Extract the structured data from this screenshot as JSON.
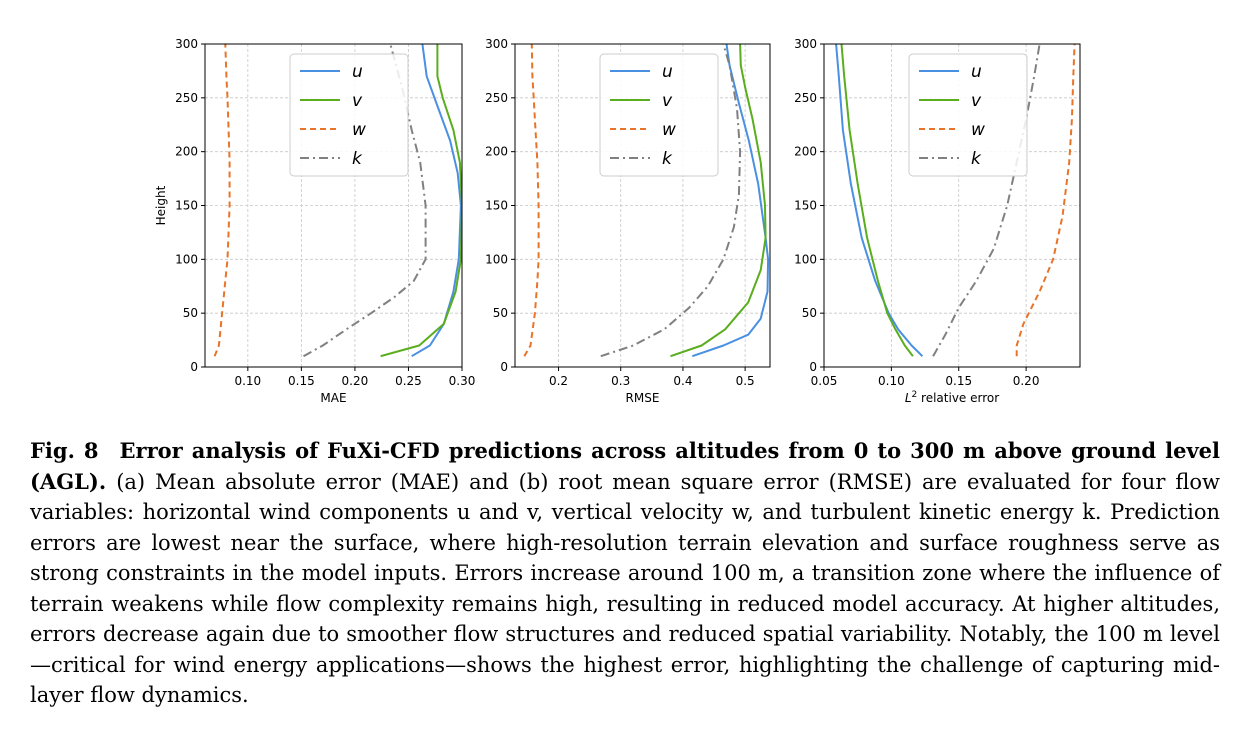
{
  "chart_data": [
    {
      "type": "line",
      "panel": "a",
      "title": "",
      "xlabel": "MAE",
      "ylabel": "Height",
      "xlim": [
        0.06,
        0.3
      ],
      "ylim": [
        0,
        300
      ],
      "xticks": [
        0.1,
        0.15,
        0.2,
        0.25,
        0.3
      ],
      "xtick_labels": [
        "0.10",
        "0.15",
        "0.20",
        "0.25",
        "0.30"
      ],
      "yticks": [
        0,
        50,
        100,
        150,
        200,
        250,
        300
      ],
      "ytick_labels": [
        "0",
        "50",
        "100",
        "150",
        "200",
        "250",
        "300"
      ],
      "grid": true,
      "legend": "top-center",
      "series": [
        {
          "name": "u",
          "color": "#4a90e2",
          "dash": "solid",
          "x": [
            0.253,
            0.27,
            0.283,
            0.292,
            0.297,
            0.299,
            0.296,
            0.289,
            0.278,
            0.267,
            0.263
          ],
          "y": [
            10,
            20,
            40,
            70,
            100,
            150,
            180,
            210,
            240,
            270,
            300
          ]
        },
        {
          "name": "v",
          "color": "#5aad1e",
          "dash": "solid",
          "x": [
            0.224,
            0.26,
            0.283,
            0.294,
            0.299,
            0.3,
            0.298,
            0.292,
            0.282,
            0.277,
            0.277
          ],
          "y": [
            10,
            20,
            40,
            70,
            100,
            150,
            190,
            220,
            250,
            270,
            300
          ]
        },
        {
          "name": "w",
          "color": "#e8742a",
          "dash": "dashed",
          "x": [
            0.069,
            0.073,
            0.076,
            0.079,
            0.081,
            0.083,
            0.083,
            0.082,
            0.081,
            0.08,
            0.079
          ],
          "y": [
            10,
            20,
            50,
            80,
            100,
            150,
            190,
            220,
            250,
            270,
            300
          ]
        },
        {
          "name": "k",
          "color": "#808080",
          "dash": "dashdot",
          "x": [
            0.152,
            0.17,
            0.192,
            0.215,
            0.237,
            0.255,
            0.266,
            0.266,
            0.261,
            0.253,
            0.244,
            0.233
          ],
          "y": [
            10,
            20,
            35,
            50,
            65,
            80,
            100,
            150,
            190,
            220,
            260,
            300
          ]
        }
      ]
    },
    {
      "type": "line",
      "panel": "b",
      "title": "",
      "xlabel": "RMSE",
      "ylabel": "",
      "xlim": [
        0.13,
        0.54
      ],
      "ylim": [
        0,
        300
      ],
      "xticks": [
        0.2,
        0.3,
        0.4,
        0.5
      ],
      "xtick_labels": [
        "0.2",
        "0.3",
        "0.4",
        "0.5"
      ],
      "yticks": [
        0,
        50,
        100,
        150,
        200,
        250,
        300
      ],
      "ytick_labels": [
        "0",
        "50",
        "100",
        "150",
        "200",
        "250",
        "300"
      ],
      "grid": true,
      "legend": "top-center",
      "series": [
        {
          "name": "u",
          "color": "#4a90e2",
          "dash": "solid",
          "x": [
            0.415,
            0.465,
            0.505,
            0.525,
            0.536,
            0.537,
            0.533,
            0.521,
            0.506,
            0.49,
            0.475,
            0.47
          ],
          "y": [
            10,
            20,
            30,
            45,
            70,
            100,
            120,
            170,
            210,
            245,
            280,
            300
          ]
        },
        {
          "name": "v",
          "color": "#5aad1e",
          "dash": "solid",
          "x": [
            0.38,
            0.43,
            0.468,
            0.505,
            0.525,
            0.533,
            0.532,
            0.525,
            0.512,
            0.5,
            0.493,
            0.492
          ],
          "y": [
            10,
            20,
            35,
            60,
            90,
            120,
            150,
            190,
            230,
            260,
            280,
            300
          ]
        },
        {
          "name": "w",
          "color": "#e8742a",
          "dash": "dashed",
          "x": [
            0.145,
            0.155,
            0.162,
            0.166,
            0.168,
            0.168,
            0.166,
            0.163,
            0.16,
            0.158,
            0.157
          ],
          "y": [
            10,
            20,
            50,
            80,
            100,
            150,
            190,
            220,
            250,
            270,
            300
          ]
        },
        {
          "name": "k",
          "color": "#808080",
          "dash": "dashdot",
          "x": [
            0.268,
            0.32,
            0.37,
            0.41,
            0.44,
            0.465,
            0.482,
            0.49,
            0.492,
            0.487,
            0.475,
            0.465
          ],
          "y": [
            10,
            20,
            35,
            55,
            75,
            100,
            130,
            160,
            200,
            240,
            280,
            300
          ]
        }
      ]
    },
    {
      "type": "line",
      "panel": "c",
      "title": "",
      "xlabel": "L² relative error",
      "ylabel": "",
      "xlim": [
        0.05,
        0.24
      ],
      "ylim": [
        0,
        300
      ],
      "xticks": [
        0.05,
        0.1,
        0.15,
        0.2
      ],
      "xtick_labels": [
        "0.05",
        "0.10",
        "0.15",
        "0.20"
      ],
      "yticks": [
        0,
        50,
        100,
        150,
        200,
        250,
        300
      ],
      "ytick_labels": [
        "0",
        "50",
        "100",
        "150",
        "200",
        "250",
        "300"
      ],
      "grid": true,
      "legend": "top-center",
      "series": [
        {
          "name": "u",
          "color": "#4a90e2",
          "dash": "solid",
          "x": [
            0.123,
            0.115,
            0.105,
            0.098,
            0.088,
            0.078,
            0.07,
            0.064,
            0.061,
            0.059
          ],
          "y": [
            10,
            20,
            35,
            50,
            80,
            120,
            170,
            220,
            270,
            300
          ]
        },
        {
          "name": "v",
          "color": "#5aad1e",
          "dash": "solid",
          "x": [
            0.116,
            0.11,
            0.103,
            0.097,
            0.09,
            0.082,
            0.075,
            0.069,
            0.065,
            0.063
          ],
          "y": [
            10,
            20,
            35,
            50,
            80,
            120,
            170,
            220,
            270,
            300
          ]
        },
        {
          "name": "w",
          "color": "#e8742a",
          "dash": "dashed",
          "x": [
            0.193,
            0.193,
            0.198,
            0.21,
            0.22,
            0.227,
            0.232,
            0.234,
            0.235,
            0.236
          ],
          "y": [
            10,
            20,
            40,
            70,
            100,
            140,
            190,
            230,
            270,
            300
          ]
        },
        {
          "name": "k",
          "color": "#808080",
          "dash": "dashdot",
          "x": [
            0.131,
            0.14,
            0.15,
            0.163,
            0.176,
            0.186,
            0.193,
            0.2,
            0.206,
            0.21
          ],
          "y": [
            10,
            30,
            55,
            80,
            110,
            150,
            190,
            230,
            270,
            300
          ]
        }
      ]
    }
  ],
  "caption": {
    "label": "Fig. 8",
    "title": "Error analysis of FuXi-CFD predictions across altitudes from 0 to 300 m above ground level (AGL).",
    "body": "(a) Mean absolute error (MAE) and (b) root mean square error (RMSE) are evaluated for four flow variables: horizontal wind components u and v, vertical velocity w, and turbulent kinetic energy k. Prediction errors are lowest near the surface, where high-resolution terrain elevation and surface roughness serve as strong constraints in the model inputs. Errors increase around 100 m, a transition zone where the influence of terrain weakens while flow complexity remains high, resulting in reduced model accuracy. At higher altitudes, errors decrease again due to smoother flow structures and reduced spatial variability. Notably, the 100 m level—critical for wind energy applications—shows the highest error, highlighting the challenge of capturing mid-layer flow dynamics."
  }
}
